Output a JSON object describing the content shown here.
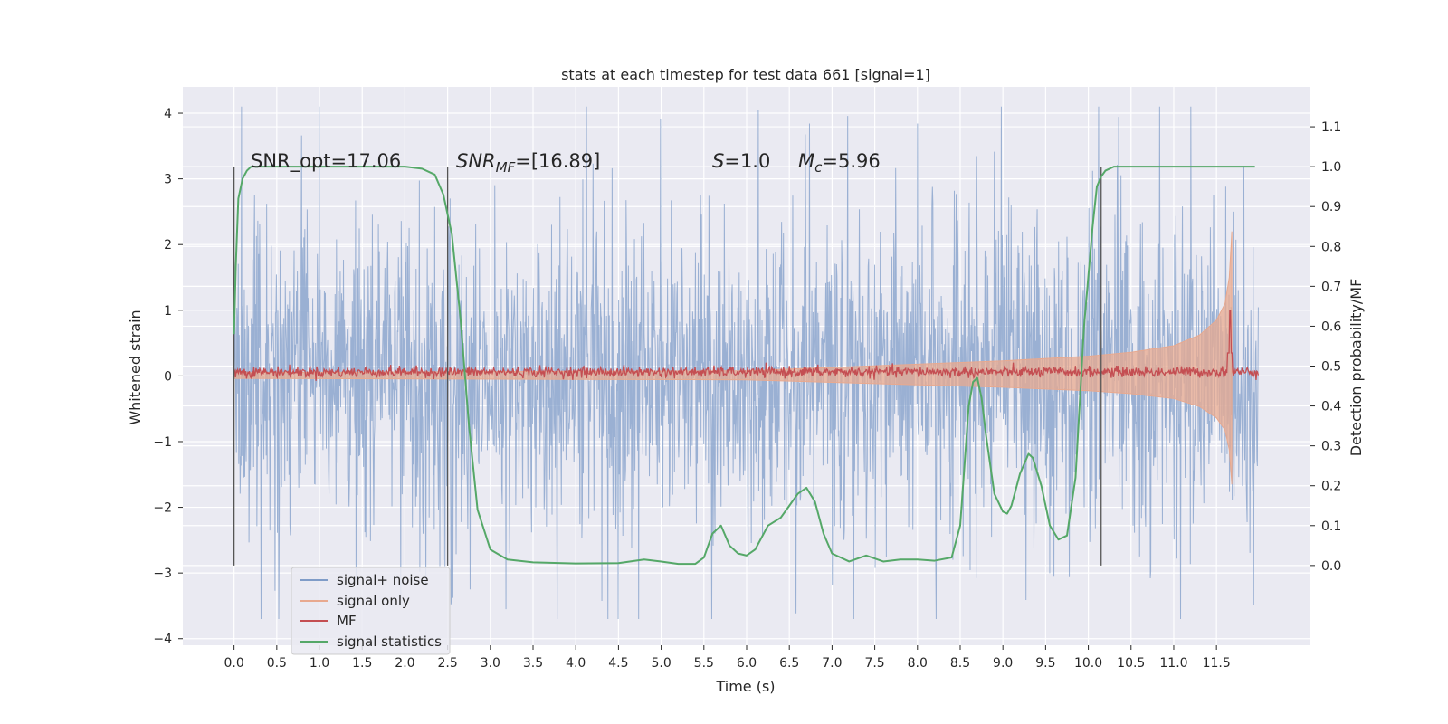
{
  "chart_data": {
    "type": "line",
    "title": "stats at each timestep for test data 661 [signal=1]",
    "xlabel": "Time (s)",
    "ylabel": "Whitened strain",
    "ylabel_right": "Detection probability/MF",
    "xlim": [
      -0.6,
      12.6
    ],
    "ylim": [
      -4.1,
      4.4
    ],
    "ylim_right": [
      -0.2,
      1.2
    ],
    "x_ticks": [
      "0.0",
      "0.5",
      "1.0",
      "1.5",
      "2.0",
      "2.5",
      "3.0",
      "3.5",
      "4.0",
      "4.5",
      "5.0",
      "5.5",
      "6.0",
      "6.5",
      "7.0",
      "7.5",
      "8.0",
      "8.5",
      "9.0",
      "9.5",
      "10.0",
      "10.5",
      "11.0",
      "11.5"
    ],
    "y_ticks": [
      "4",
      "3",
      "2",
      "1",
      "0",
      "−1",
      "−2",
      "−3",
      "−4"
    ],
    "y_ticks_right": [
      "1.1",
      "1.0",
      "0.9",
      "0.8",
      "0.7",
      "0.6",
      "0.5",
      "0.4",
      "0.3",
      "0.2",
      "0.1",
      "0.0"
    ],
    "grid": true,
    "legend_position": "lower-left",
    "annotations": {
      "snr_opt": "SNR_opt=17.06",
      "snr_mf_sym": "SNR",
      "snr_mf_sub": "MF",
      "snr_mf_val": "=[16.89]",
      "s_sym": "S",
      "s_val": "=1.0",
      "mc_sym": "M",
      "mc_sub": "c",
      "mc_val": "=5.96"
    },
    "vertical_markers": [
      0.0,
      2.5,
      10.15
    ],
    "series": [
      {
        "name": "signal+ noise",
        "color": "#7f9cc8",
        "axis": "left",
        "description": "whitened strain, approx. zero-mean with std ~1.2, peaks near ±4",
        "x_range": [
          0.0,
          11.99
        ],
        "envelope": {
          "typical_abs": 3.0,
          "max": 4.1,
          "min": -3.7
        }
      },
      {
        "name": "signal only",
        "color": "#e8a98f",
        "axis": "left",
        "description": "chirp amplitude envelope growing from ~0.05 to ~2.2 at merger (t=11.68s)",
        "envelope": {
          "x": [
            0.0,
            6.0,
            7.0,
            8.0,
            9.0,
            10.0,
            10.5,
            11.0,
            11.3,
            11.5,
            11.6,
            11.65,
            11.68
          ],
          "amp": [
            0.05,
            0.08,
            0.13,
            0.18,
            0.23,
            0.3,
            0.36,
            0.46,
            0.62,
            0.85,
            1.1,
            1.5,
            2.2
          ]
        }
      },
      {
        "name": "MF",
        "color": "#c44e52",
        "axis": "left",
        "description": "matched filter output, ~0.1 baseline with spike to ~1.0 at t=11.65s",
        "spike": {
          "x": 11.66,
          "y": 1.0
        }
      },
      {
        "name": "signal statistics",
        "color": "#55a868",
        "axis": "right",
        "x": [
          0.0,
          0.02,
          0.05,
          0.1,
          0.15,
          0.2,
          0.5,
          1.0,
          1.5,
          2.0,
          2.2,
          2.35,
          2.45,
          2.55,
          2.65,
          2.75,
          2.85,
          3.0,
          3.2,
          3.5,
          4.0,
          4.5,
          4.8,
          5.0,
          5.2,
          5.4,
          5.5,
          5.6,
          5.7,
          5.8,
          5.9,
          6.0,
          6.1,
          6.25,
          6.4,
          6.5,
          6.6,
          6.7,
          6.8,
          6.9,
          7.0,
          7.2,
          7.4,
          7.6,
          7.8,
          8.0,
          8.2,
          8.4,
          8.5,
          8.6,
          8.65,
          8.7,
          8.75,
          8.8,
          8.9,
          9.0,
          9.05,
          9.1,
          9.2,
          9.3,
          9.35,
          9.45,
          9.55,
          9.65,
          9.75,
          9.85,
          9.95,
          10.05,
          10.1,
          10.15,
          10.2,
          10.3,
          10.5,
          11.0,
          11.5,
          11.95
        ],
        "y": [
          0.58,
          0.75,
          0.92,
          0.97,
          0.99,
          1.0,
          1.0,
          1.0,
          1.0,
          1.0,
          0.995,
          0.98,
          0.93,
          0.83,
          0.62,
          0.35,
          0.14,
          0.04,
          0.015,
          0.008,
          0.005,
          0.006,
          0.015,
          0.01,
          0.004,
          0.004,
          0.02,
          0.08,
          0.1,
          0.05,
          0.03,
          0.025,
          0.04,
          0.1,
          0.12,
          0.15,
          0.18,
          0.195,
          0.16,
          0.08,
          0.03,
          0.01,
          0.025,
          0.01,
          0.015,
          0.015,
          0.012,
          0.02,
          0.1,
          0.4,
          0.46,
          0.47,
          0.42,
          0.33,
          0.18,
          0.135,
          0.13,
          0.15,
          0.23,
          0.28,
          0.27,
          0.2,
          0.1,
          0.065,
          0.075,
          0.22,
          0.6,
          0.85,
          0.95,
          0.975,
          0.99,
          1.0,
          1.0,
          1.0,
          1.0,
          1.0
        ]
      }
    ]
  }
}
